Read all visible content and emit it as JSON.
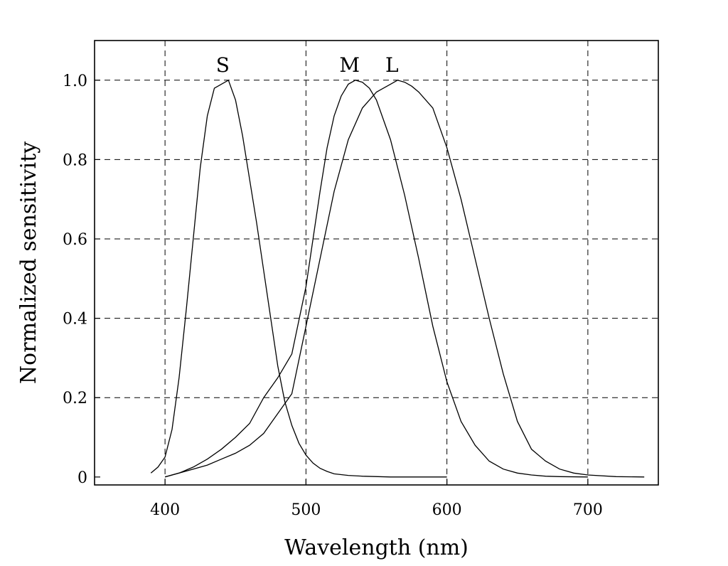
{
  "chart_data": {
    "type": "line",
    "xlabel": "Wavelength (nm)",
    "ylabel": "Normalized sensitivity",
    "xlim": [
      350,
      750
    ],
    "ylim": [
      -0.02,
      1.1
    ],
    "grid": true,
    "legend": "none",
    "x_ticks": [
      400,
      500,
      600,
      700
    ],
    "x_tick_labels": [
      "400",
      "500",
      "600",
      "700"
    ],
    "y_ticks": [
      0,
      0.2,
      0.4,
      0.6,
      0.8,
      1.0
    ],
    "y_tick_labels": [
      "0",
      "0.2",
      "0.4",
      "0.6",
      "0.8",
      "1.0"
    ],
    "series": [
      {
        "name": "S",
        "x": [
          390,
          395,
          400,
          405,
          410,
          415,
          420,
          425,
          430,
          435,
          440,
          445,
          450,
          455,
          460,
          465,
          470,
          475,
          480,
          485,
          490,
          495,
          500,
          505,
          510,
          515,
          520,
          530,
          540,
          560,
          600
        ],
        "y": [
          0.01,
          0.025,
          0.05,
          0.12,
          0.25,
          0.42,
          0.6,
          0.78,
          0.91,
          0.98,
          0.99,
          1.0,
          0.95,
          0.86,
          0.75,
          0.64,
          0.52,
          0.4,
          0.28,
          0.19,
          0.13,
          0.085,
          0.055,
          0.035,
          0.022,
          0.014,
          0.008,
          0.004,
          0.002,
          0.0,
          0.0
        ]
      },
      {
        "name": "M",
        "x": [
          400,
          410,
          420,
          430,
          440,
          450,
          460,
          470,
          480,
          490,
          500,
          505,
          510,
          515,
          520,
          525,
          530,
          535,
          540,
          545,
          550,
          560,
          570,
          580,
          590,
          600,
          610,
          620,
          630,
          640,
          650,
          660,
          670,
          680,
          700
        ],
        "y": [
          0.0,
          0.01,
          0.025,
          0.045,
          0.07,
          0.1,
          0.135,
          0.2,
          0.25,
          0.31,
          0.48,
          0.6,
          0.72,
          0.83,
          0.91,
          0.96,
          0.99,
          1.0,
          0.995,
          0.98,
          0.95,
          0.85,
          0.71,
          0.55,
          0.38,
          0.24,
          0.14,
          0.08,
          0.04,
          0.02,
          0.01,
          0.005,
          0.002,
          0.001,
          0.0
        ]
      },
      {
        "name": "L",
        "x": [
          400,
          410,
          420,
          430,
          440,
          450,
          460,
          470,
          480,
          490,
          500,
          510,
          520,
          530,
          540,
          550,
          560,
          565,
          570,
          575,
          580,
          590,
          600,
          610,
          620,
          630,
          640,
          650,
          660,
          670,
          680,
          690,
          700,
          720,
          740
        ],
        "y": [
          0.0,
          0.01,
          0.02,
          0.03,
          0.045,
          0.06,
          0.08,
          0.11,
          0.16,
          0.21,
          0.38,
          0.55,
          0.72,
          0.85,
          0.93,
          0.97,
          0.99,
          1.0,
          0.995,
          0.985,
          0.97,
          0.93,
          0.83,
          0.7,
          0.55,
          0.4,
          0.26,
          0.14,
          0.07,
          0.04,
          0.02,
          0.01,
          0.005,
          0.001,
          0.0
        ]
      }
    ]
  }
}
